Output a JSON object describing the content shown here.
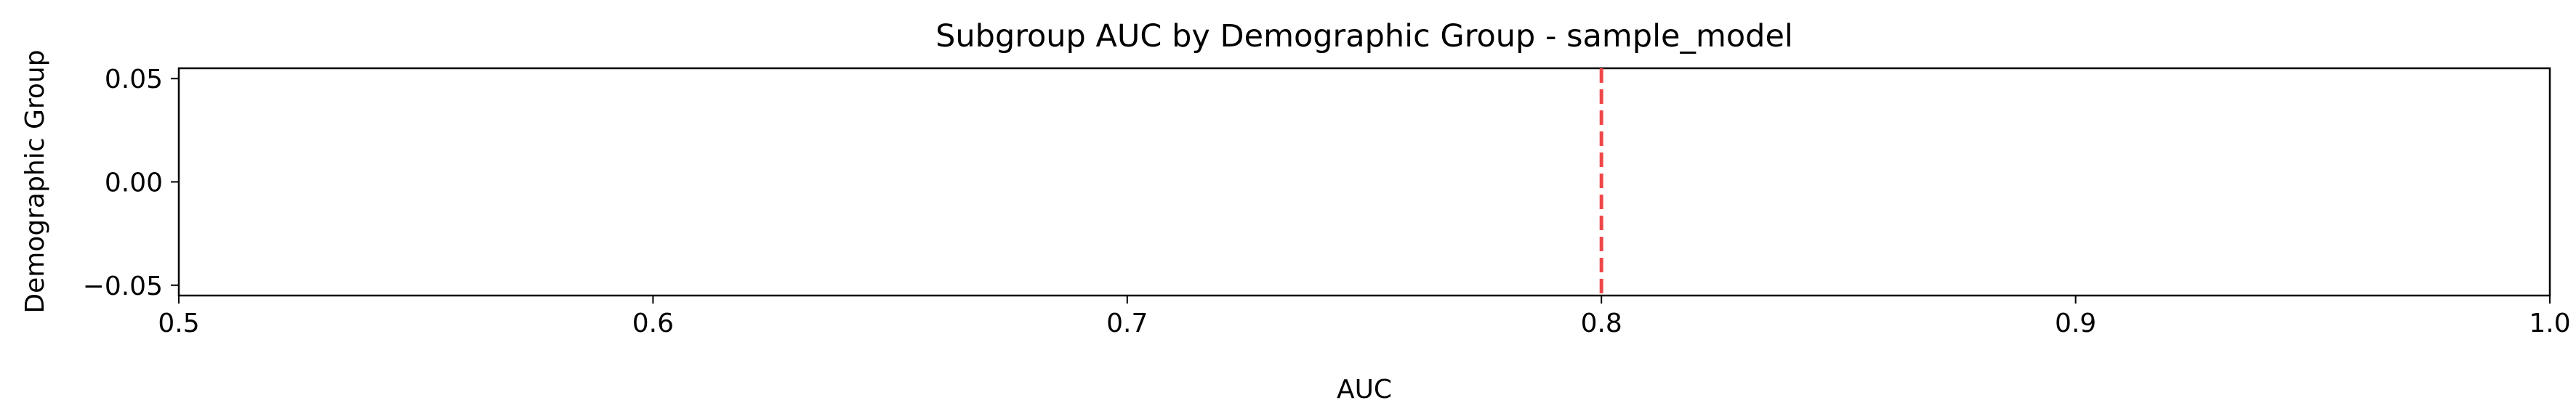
{
  "chart_data": {
    "type": "bar",
    "title": "Subgroup AUC by Demographic Group - sample_model",
    "xlabel": "AUC",
    "ylabel": "Demographic Group",
    "xlim": [
      0.5,
      1.0
    ],
    "ylim": [
      -0.055,
      0.055
    ],
    "xticks": [
      0.5,
      0.6,
      0.7,
      0.8,
      0.9,
      1.0
    ],
    "xtick_labels": [
      "0.5",
      "0.6",
      "0.7",
      "0.8",
      "0.9",
      "1.0"
    ],
    "yticks": [
      0.05,
      0.0,
      -0.05
    ],
    "ytick_labels": [
      "0.05",
      "0.00",
      "−0.05"
    ],
    "categories": [],
    "values": [],
    "reference_line": {
      "x": 0.8,
      "style": "dashed",
      "color": "#f04848"
    },
    "grid": false,
    "legend": "none"
  }
}
